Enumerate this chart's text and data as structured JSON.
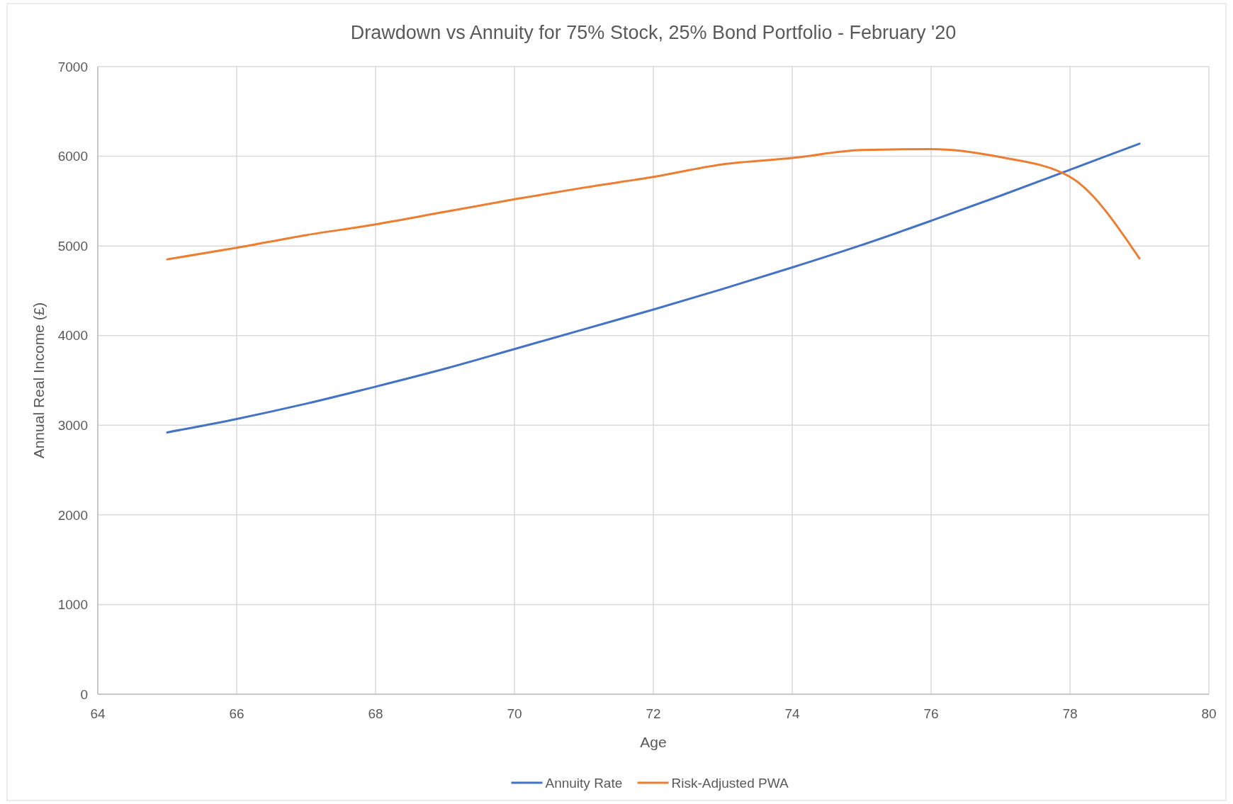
{
  "chart_data": {
    "type": "line",
    "title": "Drawdown vs Annuity for 75% Stock, 25% Bond Portfolio - February '20",
    "xlabel": "Age",
    "ylabel": "Annual Real Income (£)",
    "x": [
      65,
      66,
      67,
      68,
      69,
      70,
      71,
      72,
      73,
      74,
      75,
      76,
      77,
      78,
      79
    ],
    "series": [
      {
        "name": "Annuity Rate",
        "color": "#4472c4",
        "values": [
          2920,
          3070,
          3240,
          3430,
          3630,
          3850,
          4070,
          4290,
          4520,
          4760,
          5010,
          5280,
          5560,
          5850,
          6140
        ]
      },
      {
        "name": "Risk-Adjusted PWA",
        "color": "#ed7d31",
        "values": [
          4850,
          4980,
          5120,
          5240,
          5380,
          5520,
          5650,
          5770,
          5910,
          5980,
          6070,
          6080,
          5990,
          5770,
          4860
        ]
      }
    ],
    "xlim": [
      64,
      80
    ],
    "xticks": [
      64,
      66,
      68,
      70,
      72,
      74,
      76,
      78,
      80
    ],
    "ylim": [
      0,
      7000
    ],
    "yticks": [
      0,
      1000,
      2000,
      3000,
      4000,
      5000,
      6000,
      7000
    ],
    "grid": true,
    "legend": "bottom",
    "marker": "none",
    "line_style": "solid"
  }
}
